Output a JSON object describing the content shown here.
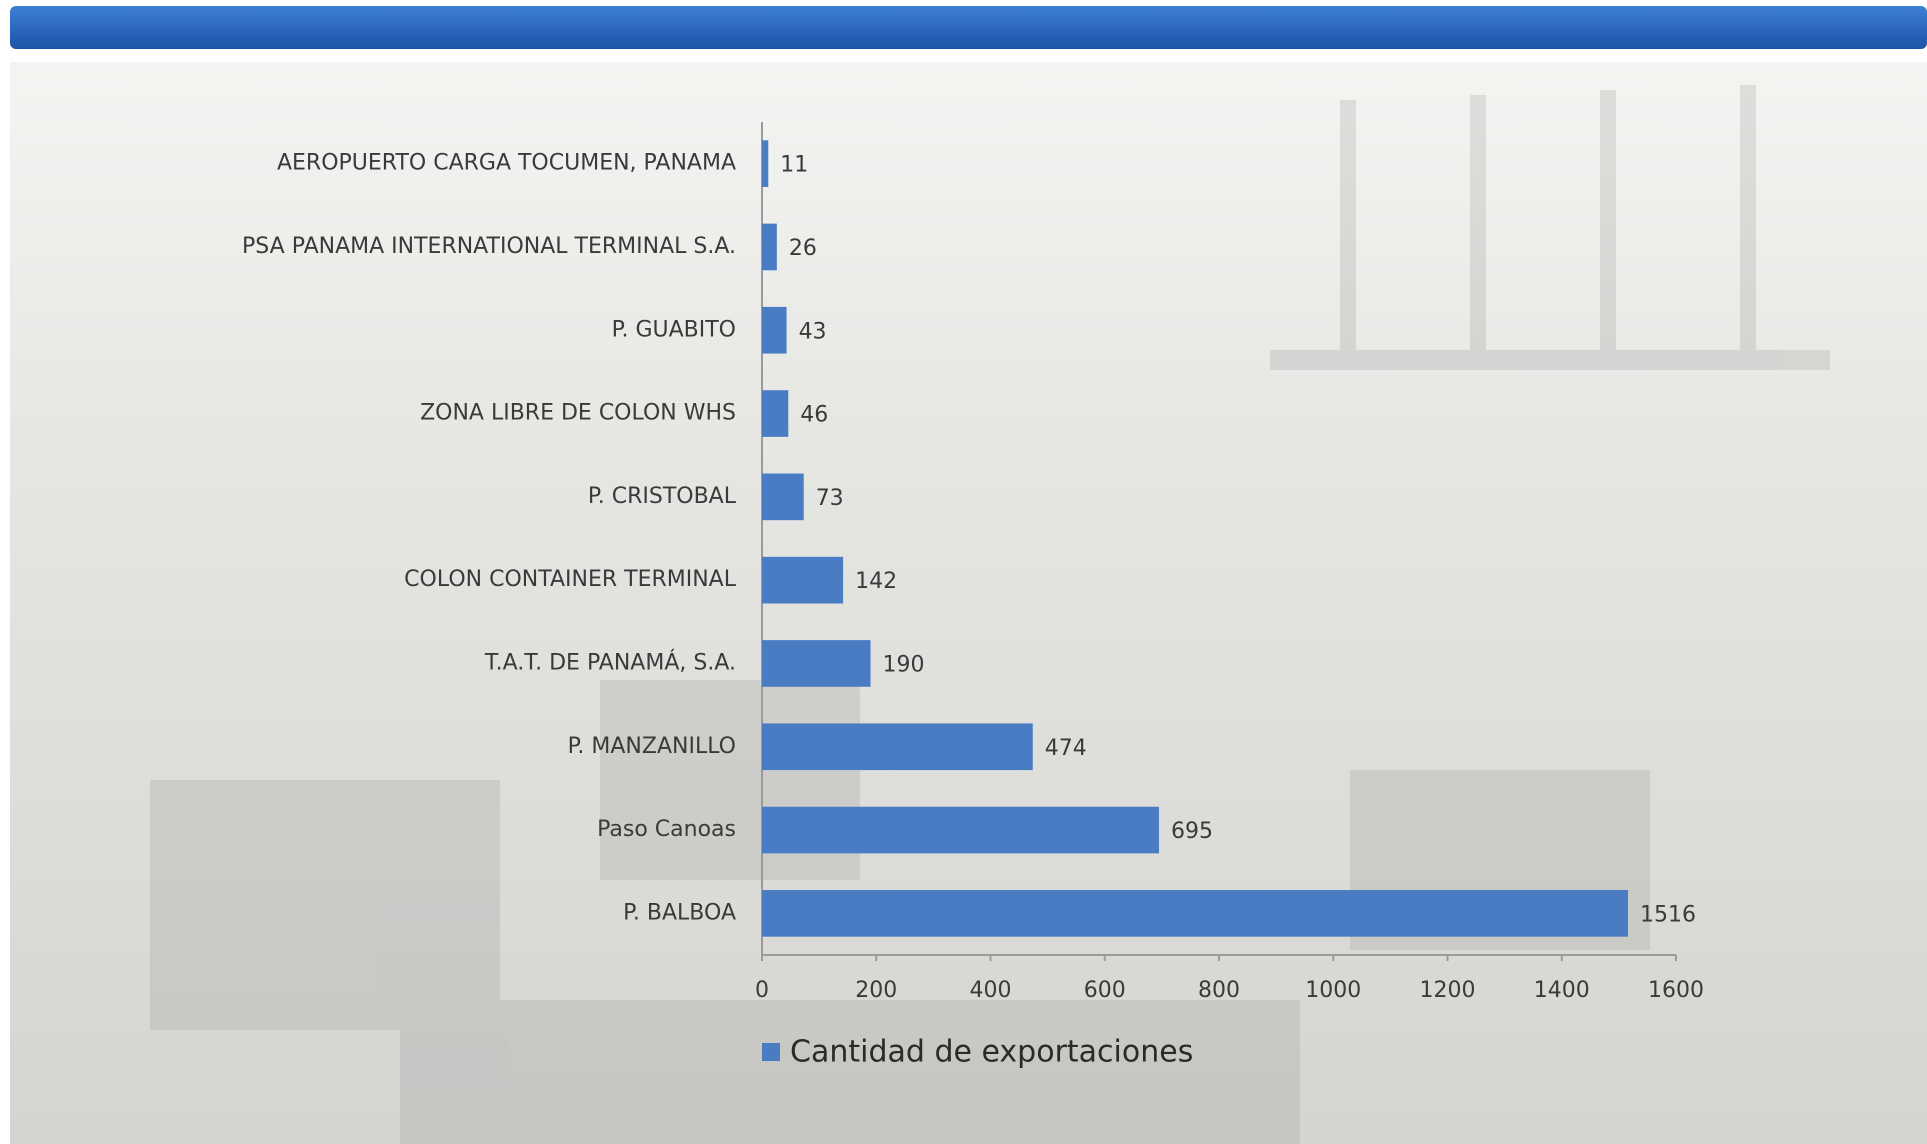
{
  "chart_data": {
    "type": "bar",
    "orientation": "horizontal",
    "categories": [
      "AEROPUERTO CARGA TOCUMEN, PANAMA",
      "PSA PANAMA INTERNATIONAL TERMINAL S.A.",
      "P. GUABITO",
      "ZONA LIBRE DE COLON WHS",
      "P. CRISTOBAL",
      "COLON CONTAINER TERMINAL",
      "T.A.T. DE PANAMÁ, S.A.",
      "P. MANZANILLO",
      "Paso Canoas",
      "P. BALBOA"
    ],
    "series": [
      {
        "name": "Cantidad de exportaciones",
        "color": "#4a7cc4",
        "values": [
          11,
          26,
          43,
          46,
          73,
          142,
          190,
          474,
          695,
          1516
        ]
      }
    ],
    "xlim": [
      0,
      1600
    ],
    "xticks": [
      0,
      200,
      400,
      600,
      800,
      1000,
      1200,
      1400,
      1600
    ],
    "legend": "bottom",
    "data_labels": true
  }
}
